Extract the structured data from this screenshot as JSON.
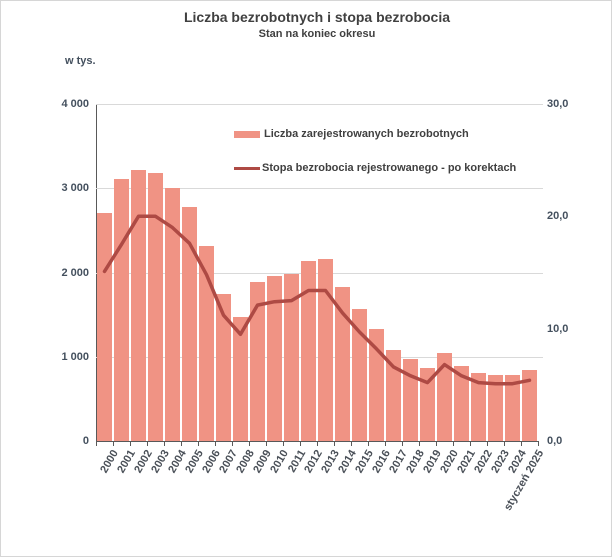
{
  "title": "Liczba bezrobotnych i stopa bezrobocia",
  "subtitle": "Stan na koniec okresu",
  "left_axis_unit_label": "w tys.",
  "colors": {
    "bar": "#F09384",
    "line": "#AE4A44",
    "grid": "#D9D9D9",
    "axis": "#595959",
    "tick_label": "#44505E",
    "title": "#404040"
  },
  "legend": [
    {
      "label": "Liczba zarejestrowanych bezrobotnych",
      "type": "bar"
    },
    {
      "label": "Stopa bezrobocia rejestrowanego - po korektach",
      "type": "line"
    }
  ],
  "left_axis": {
    "tick_labels": [
      "4 000",
      "3 000",
      "2 000",
      "1 000",
      "0"
    ]
  },
  "right_axis": {
    "tick_labels": [
      "30,0",
      "20,0",
      "10,0",
      "0,0"
    ]
  },
  "chart_data": {
    "type": "bar",
    "title": "Liczba bezrobotnych i stopa bezrobocia",
    "subtitle": "Stan na koniec okresu",
    "ylabel_left": "w tys.",
    "left_ylim": [
      0,
      4000
    ],
    "right_ylim": [
      0,
      30
    ],
    "left_ticks": [
      0,
      1000,
      2000,
      3000,
      4000
    ],
    "right_ticks": [
      0,
      10,
      20,
      30
    ],
    "grid": true,
    "legend_position": "inside-top",
    "categories": [
      "2000",
      "2001",
      "2002",
      "2003",
      "2004",
      "2005",
      "2006",
      "2007",
      "2008",
      "2009",
      "2010",
      "2011",
      "2012",
      "2013",
      "2014",
      "2015",
      "2016",
      "2017",
      "2018",
      "2019",
      "2020",
      "2021",
      "2022",
      "2023",
      "2024",
      "styczeń 2025"
    ],
    "series": [
      {
        "name": "Liczba zarejestrowanych bezrobotnych",
        "type": "bar",
        "axis": "left",
        "values": [
          2702.6,
          3115.1,
          3217.0,
          3175.7,
          2999.6,
          2773.0,
          2309.4,
          1746.6,
          1473.8,
          1892.7,
          1954.7,
          1982.7,
          2136.8,
          2157.9,
          1825.2,
          1563.3,
          1335.2,
          1081.7,
          968.9,
          866.4,
          1046.4,
          895.2,
          812.3,
          788.2,
          786.3,
          837.1
        ]
      },
      {
        "name": "Stopa bezrobocia rejestrowanego - po korektach",
        "type": "line",
        "axis": "right",
        "values": [
          15.1,
          17.5,
          20.0,
          20.0,
          19.0,
          17.6,
          14.8,
          11.2,
          9.5,
          12.1,
          12.4,
          12.5,
          13.4,
          13.4,
          11.4,
          9.7,
          8.2,
          6.6,
          5.8,
          5.2,
          6.8,
          5.8,
          5.2,
          5.1,
          5.1,
          5.4
        ]
      }
    ]
  }
}
